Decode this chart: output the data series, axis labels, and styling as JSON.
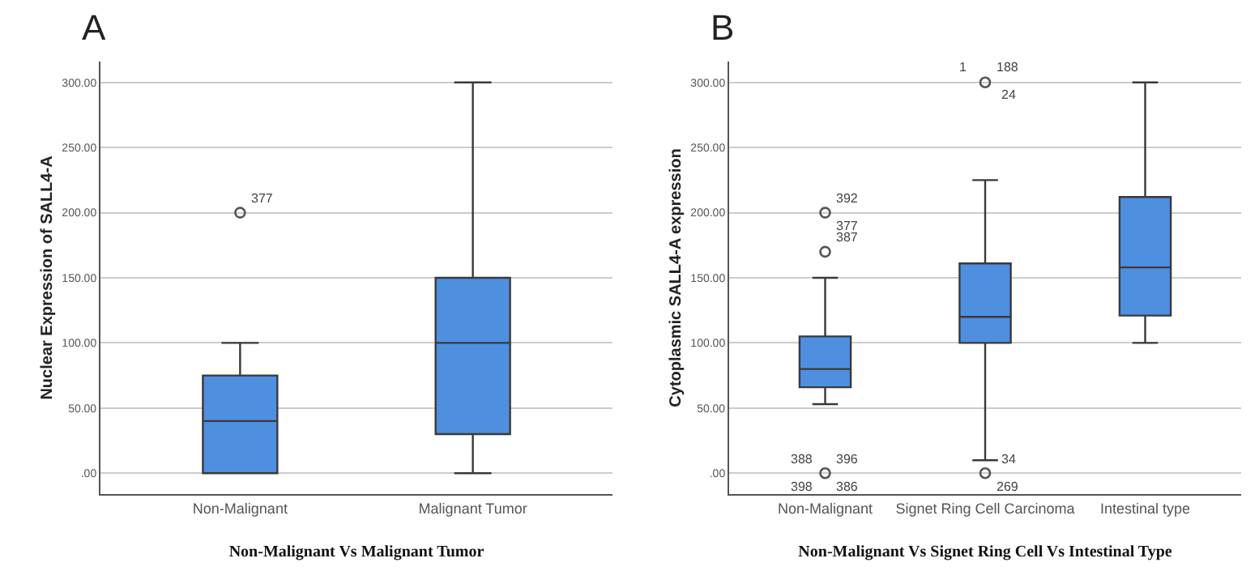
{
  "chart_data": [
    {
      "type": "box",
      "title": "A",
      "xlabel": "Non-Malignant Vs Malignant Tumor",
      "ylabel": "Nuclear Expression of SALL4-A",
      "categories": [
        "Non-Malignant",
        "Malignant Tumor"
      ],
      "series": [
        {
          "color": "#4f8fdf",
          "boxes": [
            {
              "low": 0,
              "q1": 0,
              "median": 40,
              "q3": 75,
              "high": 100
            },
            {
              "low": 0,
              "q1": 30,
              "median": 100,
              "q3": 150,
              "high": 300
            }
          ]
        },
        {
          "type": "scatter",
          "color": "#555555",
          "x": [
            "Non-Malignant"
          ],
          "values": [
            200
          ]
        }
      ],
      "ylim": [
        -16,
        316
      ],
      "yticks": [
        {
          "value": 0,
          "label": ".00"
        },
        {
          "value": 50,
          "label": "50.00"
        },
        {
          "value": 100,
          "label": "100.00"
        },
        {
          "value": 150,
          "label": "150.00"
        },
        {
          "value": 200,
          "label": "200.00"
        },
        {
          "value": 250,
          "label": "250.00"
        },
        {
          "value": 300,
          "label": "300.00"
        }
      ],
      "grid": "y",
      "annotations": [
        {
          "text": "377",
          "x": "Non-Malignant",
          "y": 200
        }
      ]
    },
    {
      "type": "box",
      "title": "B",
      "xlabel": "Non-Malignant Vs Signet Ring Cell Vs Intestinal Type",
      "ylabel": "Cytoplasmic SALL4-A expression",
      "categories": [
        "Non-Malignant",
        "Signet Ring Cell Carcinoma",
        "Intestinal type"
      ],
      "series": [
        {
          "color": "#4f8fdf",
          "boxes": [
            {
              "low": 53,
              "q1": 66,
              "median": 80,
              "q3": 105,
              "high": 150
            },
            {
              "low": 10,
              "q1": 100,
              "median": 120,
              "q3": 161,
              "high": 225
            },
            {
              "low": 100,
              "q1": 121,
              "median": 158,
              "q3": 212,
              "high": 300
            }
          ]
        },
        {
          "type": "scatter",
          "color": "#555555",
          "x": [
            "Non-Malignant",
            "Non-Malignant",
            "Non-Malignant",
            "Signet Ring Cell Carcinoma",
            "Signet Ring Cell Carcinoma"
          ],
          "values": [
            0,
            170,
            200,
            0,
            300
          ]
        }
      ],
      "ylim": [
        -16,
        316
      ],
      "yticks": [
        {
          "value": 0,
          "label": ".00"
        },
        {
          "value": 50,
          "label": "50.00"
        },
        {
          "value": 100,
          "label": "100.00"
        },
        {
          "value": 150,
          "label": "150.00"
        },
        {
          "value": 200,
          "label": "200.00"
        },
        {
          "value": 250,
          "label": "250.00"
        },
        {
          "value": 300,
          "label": "300.00"
        }
      ],
      "grid": "y",
      "annotations": [
        {
          "text": "392",
          "x": "Non-Malignant",
          "y": 200
        },
        {
          "text": "377",
          "x": "Non-Malignant",
          "y": 200
        },
        {
          "text": "387",
          "x": "Non-Malignant",
          "y": 170
        },
        {
          "text": "396",
          "x": "Non-Malignant",
          "y": 0
        },
        {
          "text": "386",
          "x": "Non-Malignant",
          "y": 0
        },
        {
          "text": "388",
          "x": "Non-Malignant",
          "y": 0
        },
        {
          "text": "398",
          "x": "Non-Malignant",
          "y": 0
        },
        {
          "text": "188",
          "x": "Signet Ring Cell Carcinoma",
          "y": 300
        },
        {
          "text": "24",
          "x": "Signet Ring Cell Carcinoma",
          "y": 300
        },
        {
          "text": "1",
          "x": "Signet Ring Cell Carcinoma",
          "y": 300
        },
        {
          "text": "34",
          "x": "Signet Ring Cell Carcinoma",
          "y": 0
        },
        {
          "text": "269",
          "x": "Signet Ring Cell Carcinoma",
          "y": 0
        }
      ]
    }
  ]
}
